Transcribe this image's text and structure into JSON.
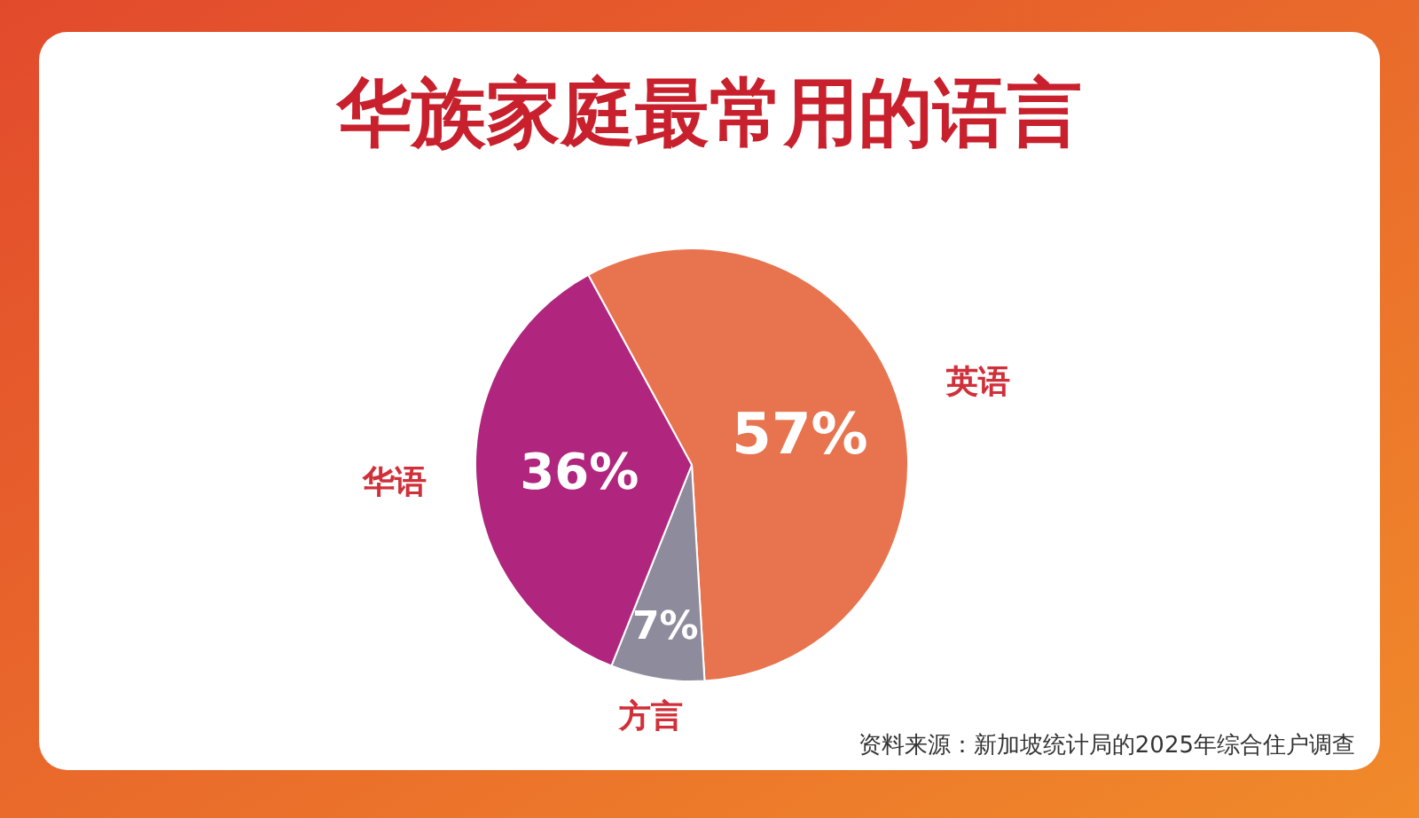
{
  "chart_data": {
    "type": "pie",
    "title": "华族家庭最常用的语言",
    "categories": [
      "英语",
      "方言",
      "华语"
    ],
    "values": [
      57,
      7,
      36
    ],
    "colors": [
      "#e8744f",
      "#8e8c9c",
      "#b0267e"
    ],
    "value_labels": [
      "57%",
      "7%",
      "36%"
    ],
    "annotations": [
      "资料来源：新加坡统计局的2025年综合住户调查"
    ]
  }
}
